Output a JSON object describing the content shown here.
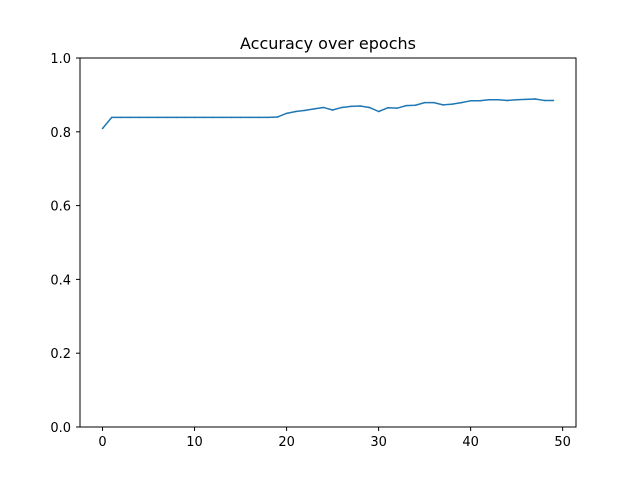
{
  "chart_data": {
    "type": "line",
    "title": "Accuracy over epochs",
    "xlabel": "",
    "ylabel": "",
    "xlim": [
      -2.45,
      51.45
    ],
    "ylim": [
      0.0,
      1.0
    ],
    "xticks": [
      0,
      10,
      20,
      30,
      40,
      50
    ],
    "yticks": [
      0.0,
      0.2,
      0.4,
      0.6,
      0.8,
      1.0
    ],
    "xtick_labels": [
      "0",
      "10",
      "20",
      "30",
      "40",
      "50"
    ],
    "ytick_labels": [
      "0.0",
      "0.2",
      "0.4",
      "0.6",
      "0.8",
      "1.0"
    ],
    "grid": false,
    "legend": "none",
    "series": [
      {
        "color": "#1f77b4",
        "x": [
          0,
          1,
          2,
          3,
          4,
          5,
          6,
          7,
          8,
          9,
          10,
          11,
          12,
          13,
          14,
          15,
          16,
          17,
          18,
          19,
          20,
          21,
          22,
          23,
          24,
          25,
          26,
          27,
          28,
          29,
          30,
          31,
          32,
          33,
          34,
          35,
          36,
          37,
          38,
          39,
          40,
          41,
          42,
          43,
          44,
          45,
          46,
          47,
          48,
          49
        ],
        "values": [
          0.809,
          0.839,
          0.839,
          0.839,
          0.839,
          0.839,
          0.839,
          0.839,
          0.839,
          0.839,
          0.839,
          0.839,
          0.839,
          0.839,
          0.839,
          0.839,
          0.839,
          0.839,
          0.839,
          0.84,
          0.85,
          0.855,
          0.858,
          0.862,
          0.866,
          0.859,
          0.866,
          0.869,
          0.87,
          0.866,
          0.855,
          0.865,
          0.864,
          0.871,
          0.872,
          0.879,
          0.879,
          0.873,
          0.875,
          0.879,
          0.884,
          0.884,
          0.887,
          0.887,
          0.885,
          0.887,
          0.888,
          0.889,
          0.885,
          0.885
        ]
      }
    ]
  }
}
